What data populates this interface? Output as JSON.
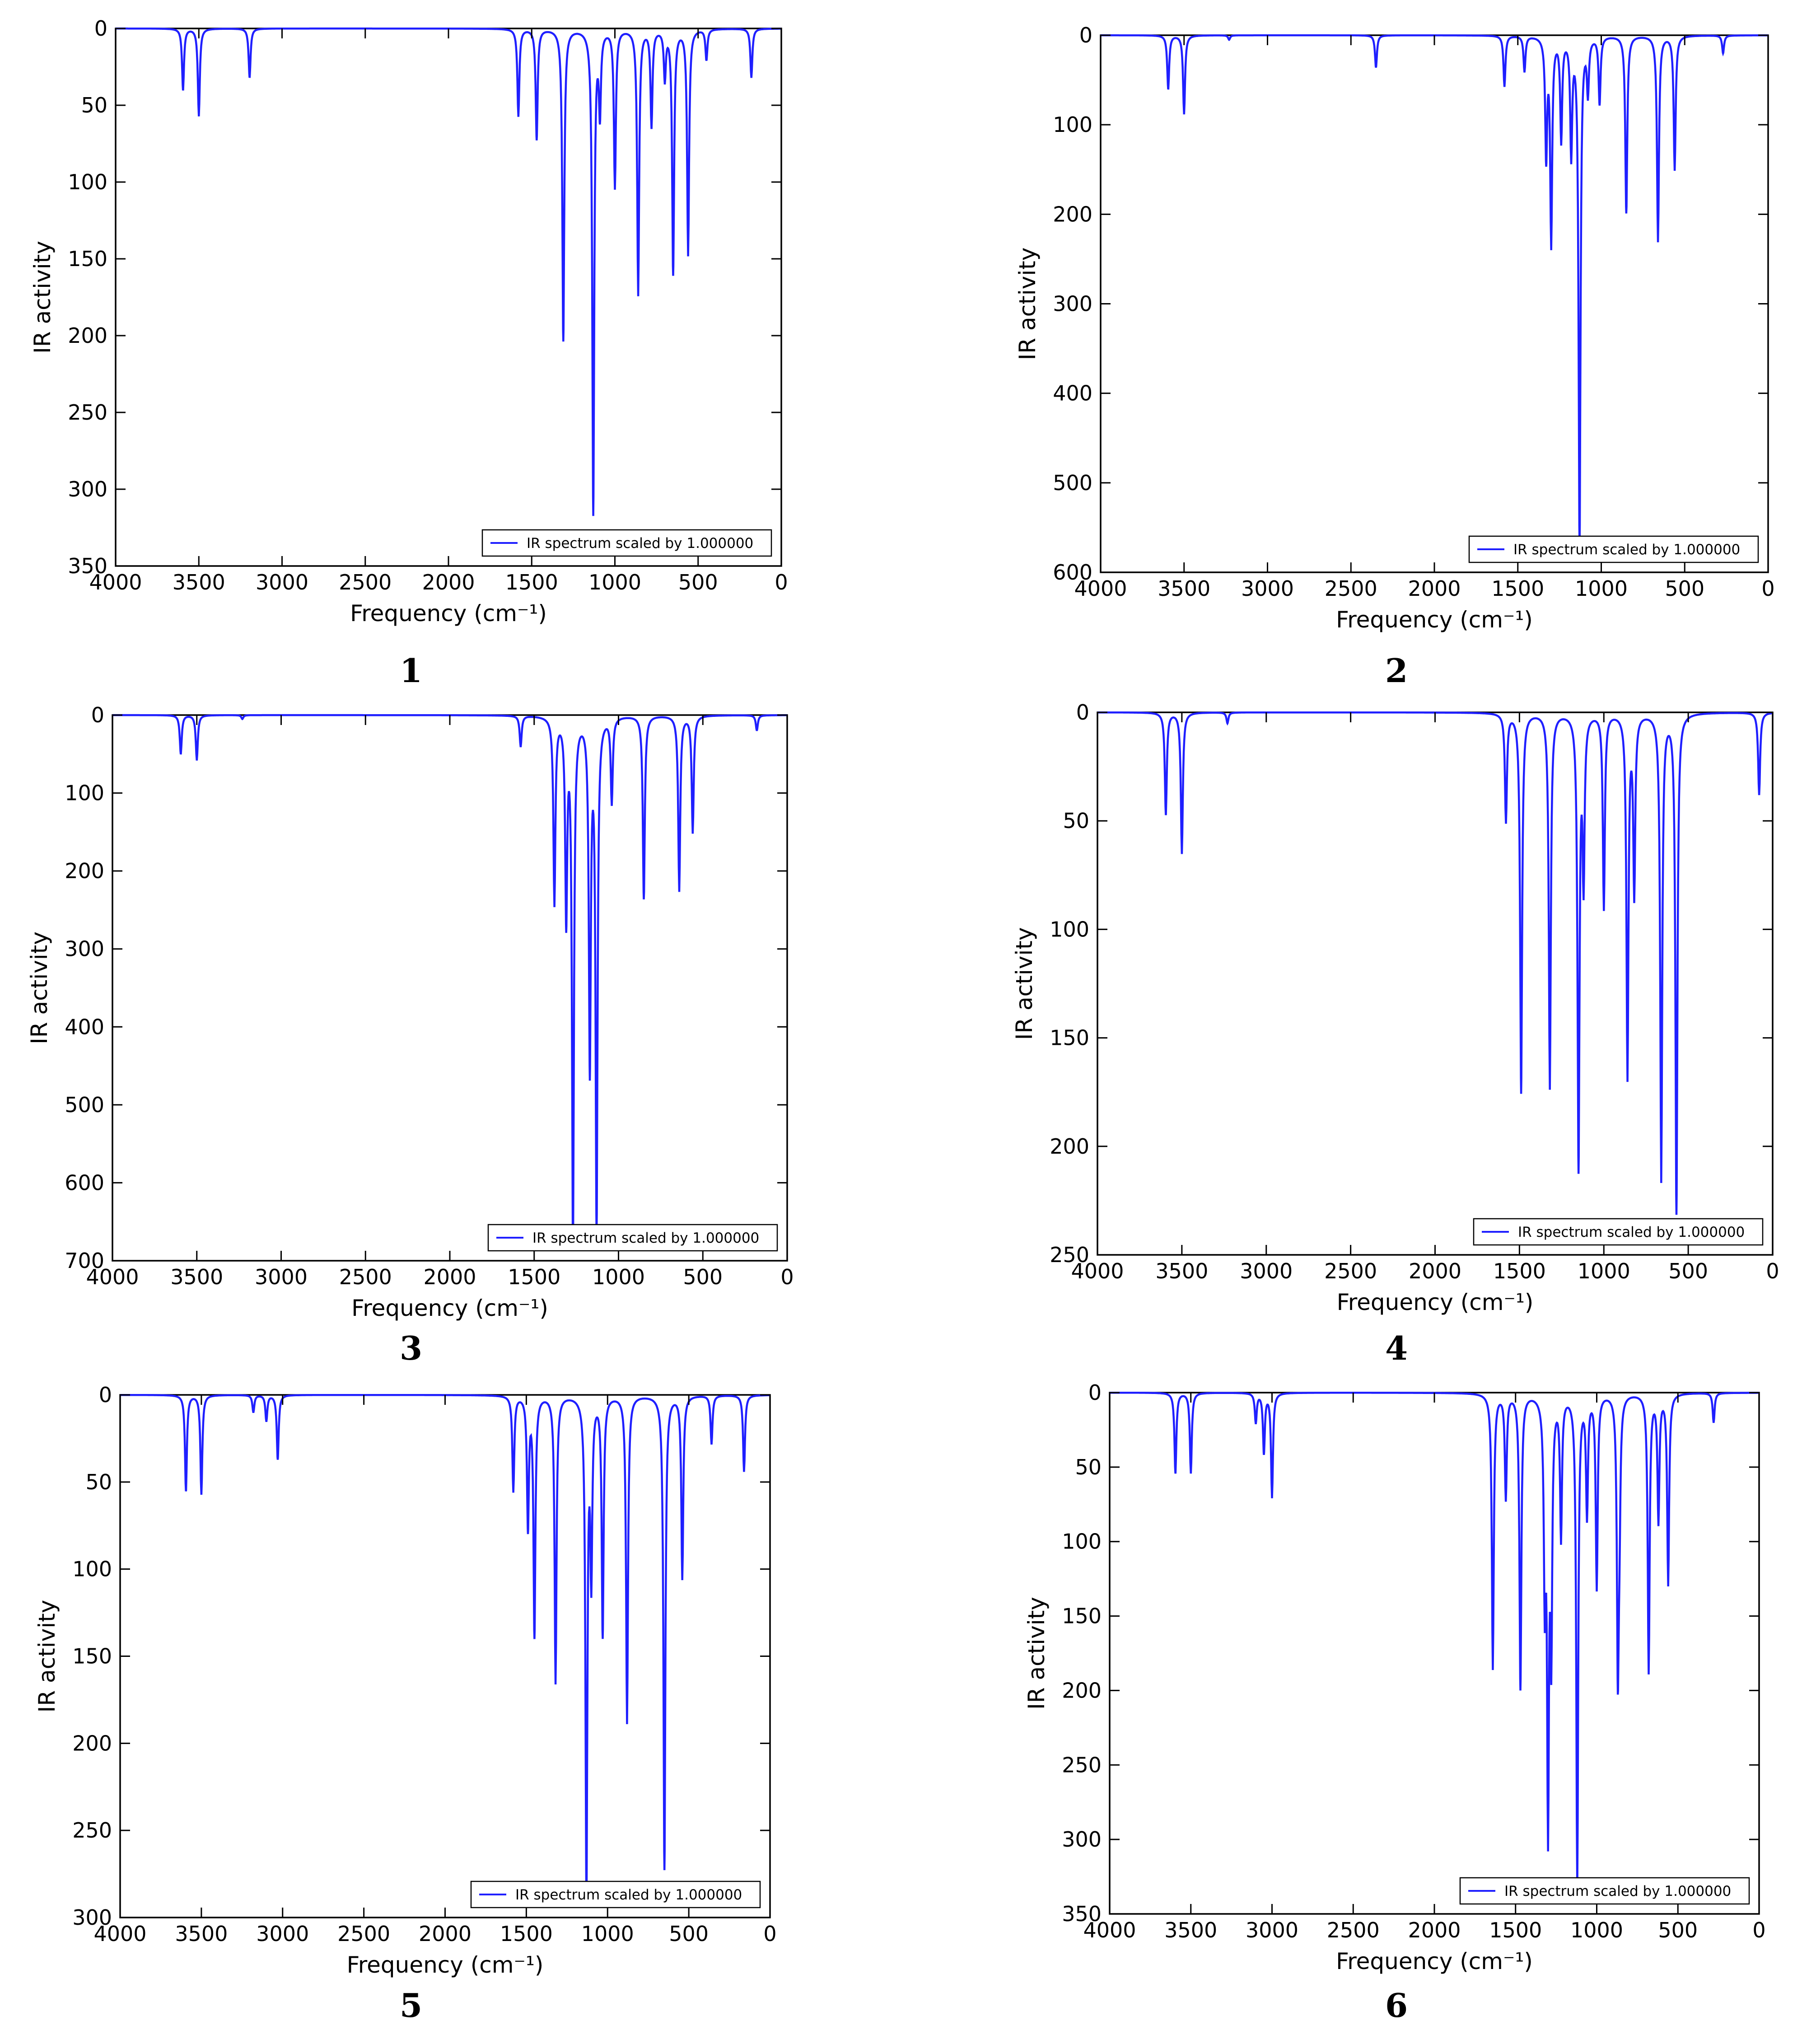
{
  "figure": {
    "legend_label": "IR spectrum scaled by 1.000000",
    "xlabel": "Frequency (cm⁻¹)",
    "ylabel": "IR activity",
    "line_color": "#1f1fff",
    "xticks": [
      4000,
      3500,
      3000,
      2500,
      2000,
      1500,
      1000,
      500,
      0
    ]
  },
  "chart_data": [
    {
      "type": "line",
      "panel_label": "1",
      "xlim": [
        4000,
        0
      ],
      "ylim": [
        0,
        350
      ],
      "y_inverted": true,
      "yticks": [
        0,
        50,
        100,
        150,
        200,
        250,
        300,
        350
      ],
      "xlabel": "Frequency (cm⁻¹)",
      "ylabel": "IR activity",
      "legend": "IR spectrum scaled by 1.000000",
      "legend_position": "lower-right",
      "peaks": [
        [
          3595,
          40
        ],
        [
          3500,
          57
        ],
        [
          3195,
          32
        ],
        [
          1580,
          57
        ],
        [
          1470,
          72
        ],
        [
          1310,
          203
        ],
        [
          1130,
          315
        ],
        [
          1090,
          52
        ],
        [
          1000,
          103
        ],
        [
          860,
          173
        ],
        [
          780,
          63
        ],
        [
          700,
          32
        ],
        [
          650,
          159
        ],
        [
          560,
          147
        ],
        [
          450,
          20
        ],
        [
          180,
          32
        ]
      ]
    },
    {
      "type": "line",
      "panel_label": "2",
      "xlim": [
        4000,
        0
      ],
      "ylim": [
        0,
        600
      ],
      "y_inverted": true,
      "yticks": [
        0,
        100,
        200,
        300,
        400,
        500,
        600
      ],
      "xlabel": "Frequency (cm⁻¹)",
      "ylabel": "IR activity",
      "legend": "IR spectrum scaled by 1.000000",
      "legend_position": "lower-right",
      "peaks": [
        [
          3595,
          60
        ],
        [
          3500,
          88
        ],
        [
          3230,
          5
        ],
        [
          2350,
          36
        ],
        [
          1580,
          57
        ],
        [
          1460,
          40
        ],
        [
          1330,
          133
        ],
        [
          1300,
          230
        ],
        [
          1240,
          115
        ],
        [
          1180,
          130
        ],
        [
          1130,
          565
        ],
        [
          1080,
          60
        ],
        [
          1010,
          75
        ],
        [
          850,
          198
        ],
        [
          660,
          230
        ],
        [
          560,
          150
        ],
        [
          270,
          20
        ]
      ]
    },
    {
      "type": "line",
      "panel_label": "3",
      "xlim": [
        4000,
        0
      ],
      "ylim": [
        0,
        700
      ],
      "y_inverted": true,
      "yticks": [
        0,
        100,
        200,
        300,
        400,
        500,
        600,
        700
      ],
      "xlabel": "Frequency (cm⁻¹)",
      "ylabel": "IR activity",
      "legend": "IR spectrum scaled by 1.000000",
      "legend_position": "lower-right",
      "peaks": [
        [
          3595,
          50
        ],
        [
          3500,
          58
        ],
        [
          3230,
          5
        ],
        [
          1580,
          40
        ],
        [
          1380,
          240
        ],
        [
          1310,
          255
        ],
        [
          1270,
          665
        ],
        [
          1170,
          445
        ],
        [
          1130,
          650
        ],
        [
          1040,
          110
        ],
        [
          850,
          235
        ],
        [
          640,
          225
        ],
        [
          560,
          150
        ],
        [
          180,
          20
        ]
      ]
    },
    {
      "type": "line",
      "panel_label": "4",
      "xlim": [
        4000,
        0
      ],
      "ylim": [
        0,
        250
      ],
      "y_inverted": true,
      "yticks": [
        0,
        50,
        100,
        150,
        200,
        250
      ],
      "xlabel": "Frequency (cm⁻¹)",
      "ylabel": "IR activity",
      "legend": "IR spectrum scaled by 1.000000",
      "legend_position": "lower-right",
      "peaks": [
        [
          3595,
          47
        ],
        [
          3500,
          65
        ],
        [
          3230,
          5
        ],
        [
          1580,
          50
        ],
        [
          1490,
          175
        ],
        [
          1320,
          173
        ],
        [
          1150,
          208
        ],
        [
          1120,
          75
        ],
        [
          1000,
          90
        ],
        [
          860,
          167
        ],
        [
          820,
          82
        ],
        [
          660,
          215
        ],
        [
          570,
          230
        ],
        [
          80,
          38
        ]
      ]
    },
    {
      "type": "line",
      "panel_label": "5",
      "xlim": [
        4000,
        0
      ],
      "ylim": [
        0,
        300
      ],
      "y_inverted": true,
      "yticks": [
        0,
        50,
        100,
        150,
        200,
        250,
        300
      ],
      "xlabel": "Frequency (cm⁻¹)",
      "ylabel": "IR activity",
      "legend": "IR spectrum scaled by 1.000000",
      "legend_position": "lower-right",
      "peaks": [
        [
          3595,
          55
        ],
        [
          3500,
          57
        ],
        [
          3180,
          10
        ],
        [
          3100,
          15
        ],
        [
          3030,
          37
        ],
        [
          1580,
          55
        ],
        [
          1490,
          75
        ],
        [
          1450,
          137
        ],
        [
          1320,
          165
        ],
        [
          1130,
          283
        ],
        [
          1100,
          100
        ],
        [
          1030,
          137
        ],
        [
          880,
          188
        ],
        [
          650,
          272
        ],
        [
          540,
          105
        ],
        [
          360,
          28
        ],
        [
          160,
          44
        ]
      ]
    },
    {
      "type": "line",
      "panel_label": "6",
      "xlim": [
        4000,
        0
      ],
      "ylim": [
        0,
        350
      ],
      "y_inverted": true,
      "yticks": [
        0,
        50,
        100,
        150,
        200,
        250,
        300,
        350
      ],
      "xlabel": "Frequency (cm⁻¹)",
      "ylabel": "IR activity",
      "legend": "IR spectrum scaled by 1.000000",
      "legend_position": "lower-right",
      "peaks": [
        [
          3595,
          54
        ],
        [
          3500,
          54
        ],
        [
          3100,
          20
        ],
        [
          3050,
          40
        ],
        [
          3000,
          70
        ],
        [
          1640,
          185
        ],
        [
          1560,
          70
        ],
        [
          1470,
          198
        ],
        [
          1320,
          125
        ],
        [
          1300,
          275
        ],
        [
          1280,
          160
        ],
        [
          1220,
          95
        ],
        [
          1120,
          330
        ],
        [
          1060,
          80
        ],
        [
          1000,
          130
        ],
        [
          870,
          180
        ],
        [
          860,
          65
        ],
        [
          680,
          187
        ],
        [
          620,
          85
        ],
        [
          560,
          128
        ],
        [
          280,
          20
        ]
      ]
    }
  ]
}
